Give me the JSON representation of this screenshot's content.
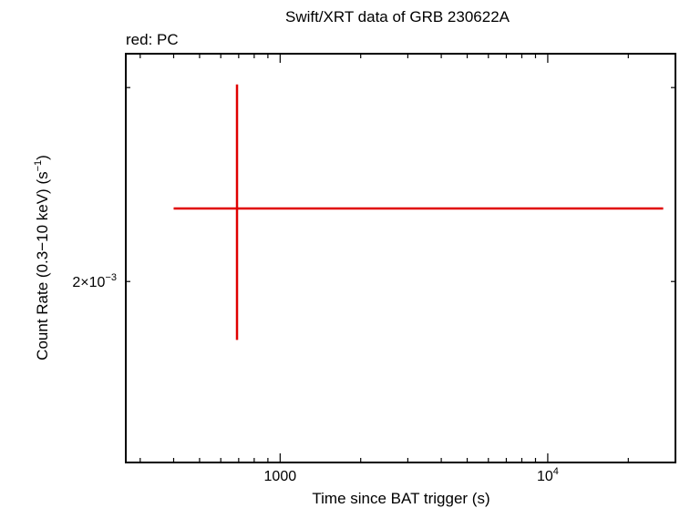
{
  "chart_data": {
    "type": "scatter",
    "title": "Swift/XRT data of GRB 230622A",
    "subtitle": "red: PC",
    "xlabel": "Time since BAT trigger (s)",
    "ylabel_main": "Count Rate (0.3−10 keV) (s",
    "ylabel_sup": "−1",
    "ylabel_close": ")",
    "xscale": "log",
    "yscale": "log",
    "xlim": [
      265,
      30000
    ],
    "ylim": [
      0.00137,
      0.00322
    ],
    "x_ticks": [
      {
        "value": 1000,
        "base": "1000",
        "sup": ""
      },
      {
        "value": 10000,
        "base": "10",
        "sup": "4"
      }
    ],
    "y_ticks": [
      {
        "value": 0.002,
        "base": "2×10",
        "sup": "−3"
      }
    ],
    "series": [
      {
        "color": "#e00000",
        "points": [
          {
            "x": 690,
            "xerr_low": 400,
            "xerr_high": 27000,
            "y": 0.00233,
            "yerr_low": 0.00177,
            "yerr_high": 0.00302
          }
        ]
      }
    ]
  }
}
